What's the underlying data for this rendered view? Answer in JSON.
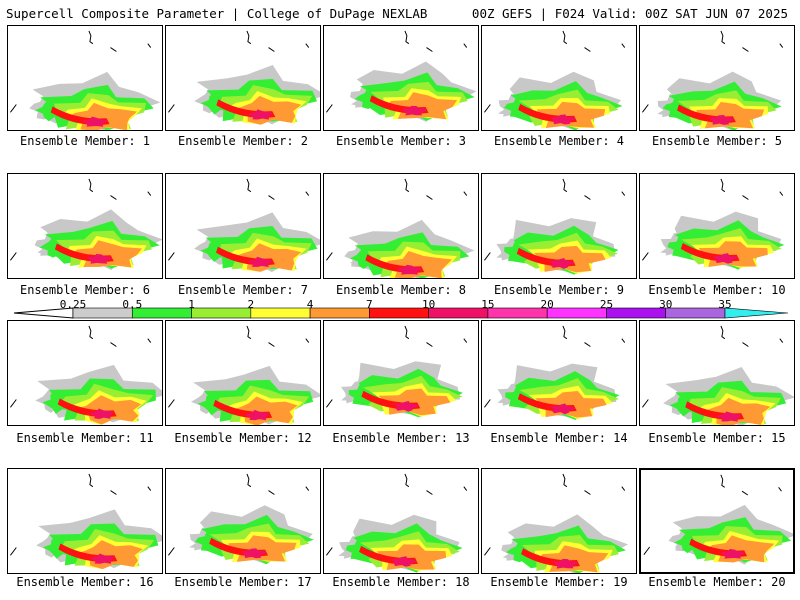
{
  "header": {
    "title": "Supercell Composite Parameter | College of DuPage NEXLAB",
    "run_info": "00Z GEFS | F024 Valid: 00Z SAT JUN 07 2025"
  },
  "legend": {
    "ticks": [
      "0.25",
      "0.5",
      "1",
      "2",
      "4",
      "7",
      "10",
      "15",
      "20",
      "25",
      "30",
      "35"
    ],
    "colors": [
      "#cccccc",
      "#33ee33",
      "#99ee33",
      "#ffff33",
      "#ff9933",
      "#ff1111",
      "#ee1166",
      "#ff33aa",
      "#ff33ff",
      "#aa11ee",
      "#aa66dd",
      "#33eeee"
    ]
  },
  "panels": [
    {
      "label": "Ensemble Member: 1"
    },
    {
      "label": "Ensemble Member: 2"
    },
    {
      "label": "Ensemble Member: 3"
    },
    {
      "label": "Ensemble Member: 4"
    },
    {
      "label": "Ensemble Member: 5"
    },
    {
      "label": "Ensemble Member: 6"
    },
    {
      "label": "Ensemble Member: 7"
    },
    {
      "label": "Ensemble Member: 8"
    },
    {
      "label": "Ensemble Member: 9"
    },
    {
      "label": "Ensemble Member: 10"
    },
    {
      "label": "Ensemble Member: 11"
    },
    {
      "label": "Ensemble Member: 12"
    },
    {
      "label": "Ensemble Member: 13"
    },
    {
      "label": "Ensemble Member: 14"
    },
    {
      "label": "Ensemble Member: 15"
    },
    {
      "label": "Ensemble Member: 16"
    },
    {
      "label": "Ensemble Member: 17"
    },
    {
      "label": "Ensemble Member: 18"
    },
    {
      "label": "Ensemble Member: 19"
    },
    {
      "label": "Ensemble Member: 20",
      "selected": true
    }
  ]
}
